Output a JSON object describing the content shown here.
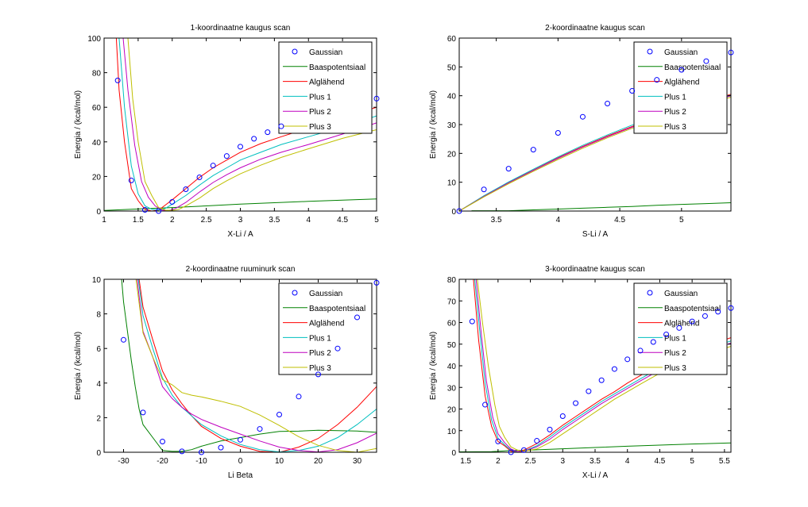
{
  "colors": {
    "Gaussian": "#0000ff",
    "Baaspotentsiaal": "#008000",
    "Alglähend": "#ff0000",
    "Plus 1": "#00bfbf",
    "Plus 2": "#bf00bf",
    "Plus 3": "#bfbf00"
  },
  "chart_data": [
    {
      "type": "line",
      "title": "1-koordinaatne kaugus scan",
      "xlabel": "X-Li / A",
      "ylabel": "Energia / (kcal/mol)",
      "xlim": [
        1,
        5
      ],
      "ylim": [
        0,
        100
      ],
      "xticks": [
        1,
        1.5,
        2,
        2.5,
        3,
        3.5,
        4,
        4.5,
        5
      ],
      "xtick_labels": [
        "1",
        "1.5",
        "2",
        "2.5",
        "3",
        "3.5",
        "4",
        "4.5",
        "5"
      ],
      "yticks": [
        0,
        20,
        40,
        60,
        80,
        100
      ],
      "ytick_labels": [
        "0",
        "20",
        "40",
        "60",
        "80",
        "100"
      ],
      "legend": "top-right",
      "series": [
        {
          "name": "Gaussian",
          "style": "marker",
          "x": [
            1.2,
            1.4,
            1.6,
            1.8,
            2.0,
            2.2,
            2.4,
            2.6,
            2.8,
            3.0,
            3.2,
            3.4,
            3.6,
            5.0
          ],
          "y": [
            75.5,
            17.7,
            0.7,
            0,
            5.3,
            12.6,
            19.5,
            26.3,
            31.8,
            37.2,
            41.8,
            45.6,
            49,
            65
          ]
        },
        {
          "name": "Baaspotentsiaal",
          "style": "line",
          "x": [
            1.0,
            1.5,
            2.0,
            2.5,
            3.0,
            3.5,
            4.0,
            4.5,
            5.0
          ],
          "y": [
            0.3,
            1.2,
            2.0,
            3.0,
            4.0,
            4.8,
            5.6,
            6.3,
            7.0
          ]
        },
        {
          "name": "Alglähend",
          "style": "line",
          "x": [
            1.18,
            1.22,
            1.3,
            1.4,
            1.5,
            1.6,
            1.7,
            1.8,
            1.9,
            2.0,
            2.2,
            2.4,
            2.6,
            2.8,
            3.0,
            3.3,
            3.6,
            4.0,
            4.5,
            5.0
          ],
          "y": [
            100,
            70,
            40,
            13,
            6,
            1,
            0,
            0.5,
            3.5,
            6.5,
            13,
            19.5,
            25,
            29.5,
            34,
            39,
            43,
            48,
            54,
            60
          ]
        },
        {
          "name": "Plus 1",
          "style": "line",
          "x": [
            1.22,
            1.3,
            1.4,
            1.5,
            1.6,
            1.7,
            1.8,
            1.9,
            2.0,
            2.2,
            2.4,
            2.6,
            2.8,
            3.0,
            3.3,
            3.6,
            4.0,
            4.5,
            5.0
          ],
          "y": [
            100,
            60,
            26,
            10,
            3,
            1,
            0.5,
            1.5,
            4,
            9,
            15,
            20.5,
            25,
            29.5,
            34,
            38.5,
            43,
            48.5,
            55
          ]
        },
        {
          "name": "Plus 2",
          "style": "line",
          "x": [
            1.28,
            1.35,
            1.45,
            1.55,
            1.65,
            1.75,
            1.85,
            1.95,
            2.05,
            2.2,
            2.4,
            2.6,
            2.8,
            3.0,
            3.3,
            3.6,
            4.0,
            4.5,
            5.0
          ],
          "y": [
            100,
            70,
            38,
            17,
            8,
            3,
            0.5,
            0.3,
            1.5,
            5,
            11,
            16.5,
            21,
            25,
            30,
            34,
            38.5,
            44.5,
            51
          ]
        },
        {
          "name": "Plus 3",
          "style": "line",
          "x": [
            1.35,
            1.42,
            1.5,
            1.6,
            1.7,
            1.8,
            1.9,
            2.0,
            2.1,
            2.2,
            2.4,
            2.6,
            2.8,
            3.0,
            3.3,
            3.6,
            4.0,
            4.5,
            5.0
          ],
          "y": [
            100,
            65,
            40,
            17,
            9,
            2,
            0.5,
            0.3,
            1,
            3,
            7.5,
            13,
            17.5,
            21.5,
            26.5,
            31,
            36,
            42,
            47
          ]
        }
      ]
    },
    {
      "type": "line",
      "title": "2-koordinaatne kaugus scan",
      "xlabel": "S-Li / A",
      "ylabel": "Energia / (kcal/mol)",
      "xlim": [
        3.2,
        5.4
      ],
      "ylim": [
        0,
        60
      ],
      "xticks": [
        3.5,
        4,
        4.5,
        5
      ],
      "xtick_labels": [
        "3.5",
        "4",
        "4.5",
        "5"
      ],
      "yticks": [
        0,
        10,
        20,
        30,
        40,
        50,
        60
      ],
      "ytick_labels": [
        "0",
        "10",
        "20",
        "30",
        "40",
        "50",
        "60"
      ],
      "legend": "top-right",
      "series": [
        {
          "name": "Gaussian",
          "style": "marker",
          "x": [
            3.2,
            3.4,
            3.6,
            3.8,
            4.0,
            4.2,
            4.4,
            4.6,
            4.8,
            5.0,
            5.2,
            5.4
          ],
          "y": [
            0,
            7.5,
            14.7,
            21.3,
            27.1,
            32.7,
            37.3,
            41.7,
            45.5,
            49,
            52,
            55
          ]
        },
        {
          "name": "Baaspotentsiaal",
          "style": "line",
          "x": [
            3.3,
            3.6,
            3.8,
            4.0,
            4.2,
            4.4,
            4.6,
            4.8,
            5.0,
            5.2,
            5.4
          ],
          "y": [
            0.1,
            0.1,
            0.4,
            0.7,
            1.0,
            1.3,
            1.6,
            2.0,
            2.3,
            2.6,
            2.9
          ]
        },
        {
          "name": "Alglähend",
          "style": "line",
          "x": [
            3.2,
            3.4,
            3.6,
            3.8,
            4.0,
            4.2,
            4.4,
            4.6,
            4.8,
            5.0,
            5.2,
            5.4
          ],
          "y": [
            0,
            5.2,
            9.9,
            14.2,
            18.5,
            22.4,
            26,
            29.3,
            32.5,
            35.3,
            38,
            40.5
          ]
        },
        {
          "name": "Plus 1",
          "style": "line",
          "x": [
            3.2,
            3.4,
            3.6,
            3.8,
            4.0,
            4.2,
            4.4,
            4.6,
            4.8,
            5.0,
            5.2,
            5.4
          ],
          "y": [
            0,
            5.3,
            10.1,
            14.5,
            18.8,
            22.8,
            26.4,
            29.8,
            32.8,
            35.5,
            38,
            40.2
          ]
        },
        {
          "name": "Plus 2",
          "style": "line",
          "x": [
            3.2,
            3.4,
            3.6,
            3.8,
            4.0,
            4.2,
            4.4,
            4.6,
            4.8,
            5.0,
            5.2,
            5.4
          ],
          "y": [
            0,
            5.1,
            9.8,
            14.1,
            18.3,
            22.2,
            25.8,
            29.1,
            32.2,
            35,
            37.6,
            40
          ]
        },
        {
          "name": "Plus 3",
          "style": "line",
          "x": [
            3.2,
            3.4,
            3.6,
            3.8,
            4.0,
            4.2,
            4.4,
            4.6,
            4.8,
            5.0,
            5.2,
            5.4
          ],
          "y": [
            0,
            4.9,
            9.5,
            13.8,
            17.9,
            21.8,
            25.4,
            28.7,
            31.8,
            34.6,
            37.2,
            39.5
          ]
        }
      ]
    },
    {
      "type": "line",
      "title": "2-koordinaatne ruuminurk scan",
      "xlabel": "Li Beta",
      "ylabel": "Energia / (kcal/mol)",
      "xlim": [
        -35,
        35
      ],
      "ylim": [
        0,
        10
      ],
      "xticks": [
        -30,
        -20,
        -10,
        0,
        10,
        20,
        30
      ],
      "xtick_labels": [
        "-30",
        "-20",
        "-10",
        "0",
        "10",
        "20",
        "30"
      ],
      "yticks": [
        0,
        2,
        4,
        6,
        8,
        10
      ],
      "ytick_labels": [
        "0",
        "2",
        "4",
        "6",
        "8",
        "10"
      ],
      "legend": "top-right",
      "series": [
        {
          "name": "Gaussian",
          "style": "marker",
          "x": [
            -30,
            -25,
            -20,
            -15,
            -10,
            -5,
            0,
            5,
            10,
            15,
            20,
            25,
            30,
            35
          ],
          "y": [
            6.5,
            2.3,
            0.62,
            0.05,
            0,
            0.27,
            0.72,
            1.35,
            2.18,
            3.22,
            4.5,
            6,
            7.8,
            9.8
          ]
        },
        {
          "name": "Baaspotentsiaal",
          "style": "line",
          "x": [
            -30.5,
            -30,
            -29,
            -28,
            -27,
            -26,
            -25,
            -22.5,
            -20,
            -17.5,
            -15,
            -12.5,
            -10,
            -5,
            0,
            5,
            10,
            15,
            20,
            25,
            30,
            35
          ],
          "y": [
            10,
            8.7,
            7,
            5.3,
            3.8,
            2.5,
            1.6,
            0.85,
            0.1,
            0.05,
            0.05,
            0.15,
            0.35,
            0.65,
            0.85,
            1.05,
            1.2,
            1.22,
            1.27,
            1.25,
            1.23,
            1.15
          ]
        },
        {
          "name": "Alglähend",
          "style": "line",
          "x": [
            -26,
            -25,
            -22.5,
            -20,
            -17.5,
            -15,
            -12.5,
            -10,
            -5,
            0,
            5,
            10,
            15,
            20,
            25,
            30,
            35
          ],
          "y": [
            10,
            8.4,
            6.5,
            4.7,
            3.6,
            2.8,
            2.1,
            1.5,
            0.8,
            0.35,
            0.05,
            0,
            0.3,
            0.8,
            1.6,
            2.6,
            3.8
          ]
        },
        {
          "name": "Plus 1",
          "style": "line",
          "x": [
            -26.2,
            -25,
            -22.5,
            -20,
            -17.5,
            -15,
            -12.5,
            -10,
            -5,
            0,
            5,
            10,
            15,
            20,
            25,
            30,
            35
          ],
          "y": [
            10,
            7.9,
            6,
            4.3,
            3.3,
            2.6,
            2.1,
            1.6,
            0.95,
            0.45,
            0.15,
            0.02,
            0.1,
            0.35,
            0.85,
            1.6,
            2.5
          ]
        },
        {
          "name": "Plus 2",
          "style": "line",
          "x": [
            -26.5,
            -25,
            -22.5,
            -20,
            -17.5,
            -15,
            -12.5,
            -10,
            -5,
            0,
            5,
            10,
            15,
            20,
            25,
            30,
            35
          ],
          "y": [
            10,
            7,
            5.5,
            3.8,
            3.1,
            2.6,
            2.2,
            1.9,
            1.45,
            1.05,
            0.65,
            0.3,
            0.1,
            0.02,
            0.15,
            0.55,
            1.1
          ]
        },
        {
          "name": "Plus 3",
          "style": "line",
          "x": [
            -26.8,
            -25,
            -22.5,
            -20,
            -17.5,
            -15,
            -12.5,
            -10,
            -5,
            0,
            5,
            10,
            15,
            20,
            25,
            30,
            35
          ],
          "y": [
            10,
            6.9,
            5.5,
            4.2,
            3.9,
            3.45,
            3.3,
            3.2,
            2.95,
            2.65,
            2.15,
            1.55,
            0.9,
            0.4,
            0.1,
            0,
            0.22
          ]
        }
      ]
    },
    {
      "type": "line",
      "title": "3-koordinaatne kaugus scan",
      "xlabel": "X-Li / A",
      "ylabel": "Energia / (kcal/mol)",
      "xlim": [
        1.4,
        5.6
      ],
      "ylim": [
        0,
        80
      ],
      "xticks": [
        1.5,
        2,
        2.5,
        3,
        3.5,
        4,
        4.5,
        5,
        5.5
      ],
      "xtick_labels": [
        "1.5",
        "2",
        "2.5",
        "3",
        "3.5",
        "4",
        "4.5",
        "5",
        "5.5"
      ],
      "yticks": [
        0,
        10,
        20,
        30,
        40,
        50,
        60,
        70,
        80
      ],
      "ytick_labels": [
        "0",
        "10",
        "20",
        "30",
        "40",
        "50",
        "60",
        "70",
        "80"
      ],
      "legend": "top-right",
      "series": [
        {
          "name": "Gaussian",
          "style": "marker",
          "x": [
            1.6,
            1.8,
            2.0,
            2.2,
            2.4,
            2.6,
            2.8,
            3.0,
            3.2,
            3.4,
            3.6,
            3.8,
            4.0,
            4.2,
            4.4,
            4.6,
            4.8,
            5.0,
            5.2,
            5.4,
            5.6
          ],
          "y": [
            60.5,
            22,
            5,
            0,
            1,
            5.3,
            10.5,
            16.7,
            22.7,
            28.2,
            33.3,
            38.5,
            43,
            47,
            51,
            54.5,
            57.5,
            60.5,
            63,
            65,
            66.7
          ]
        },
        {
          "name": "Baaspotentsiaal",
          "style": "line",
          "x": [
            1.4,
            1.9,
            2.2,
            2.5,
            3.0,
            3.5,
            4.0,
            4.5,
            5.0,
            5.6
          ],
          "y": [
            0.2,
            0.3,
            0.8,
            1.0,
            1.6,
            2.2,
            2.8,
            3.3,
            3.8,
            4.3
          ]
        },
        {
          "name": "Alglähend",
          "style": "line",
          "x": [
            1.62,
            1.7,
            1.8,
            1.9,
            2.0,
            2.1,
            2.2,
            2.3,
            2.4,
            2.6,
            2.8,
            3.0,
            3.2,
            3.4,
            3.6,
            3.8,
            4.0,
            4.2,
            4.5,
            5.0,
            5.6
          ],
          "y": [
            80,
            52,
            26,
            12,
            5,
            3,
            0.5,
            0.2,
            1,
            4,
            8,
            12.5,
            16.5,
            20.5,
            24.5,
            28,
            32,
            35.5,
            40.5,
            47,
            53
          ]
        },
        {
          "name": "Plus 1",
          "style": "line",
          "x": [
            1.64,
            1.72,
            1.8,
            1.9,
            2.0,
            2.1,
            2.2,
            2.3,
            2.4,
            2.6,
            2.8,
            3.0,
            3.2,
            3.4,
            3.6,
            3.8,
            4.0,
            4.2,
            4.5,
            5.0,
            5.6
          ],
          "y": [
            80,
            55,
            32,
            15,
            6.5,
            3.5,
            1,
            0.2,
            0.5,
            3,
            7,
            11.5,
            15.5,
            19.5,
            23.5,
            27,
            30.5,
            34,
            39,
            45.5,
            51.5
          ]
        },
        {
          "name": "Plus 2",
          "style": "line",
          "x": [
            1.66,
            1.74,
            1.82,
            1.92,
            2.0,
            2.1,
            2.2,
            2.3,
            2.4,
            2.6,
            2.8,
            3.0,
            3.2,
            3.4,
            3.6,
            3.8,
            4.0,
            4.2,
            4.5,
            5.0,
            5.6
          ],
          "y": [
            80,
            55,
            33,
            16,
            8.5,
            4.5,
            1.5,
            0.3,
            0.4,
            2.5,
            6,
            10.5,
            14.5,
            18.5,
            22.5,
            26,
            29.5,
            33,
            38,
            44.5,
            50.5
          ]
        },
        {
          "name": "Plus 3",
          "style": "line",
          "x": [
            1.68,
            1.76,
            1.85,
            1.95,
            2.02,
            2.1,
            2.2,
            2.3,
            2.4,
            2.6,
            2.8,
            3.0,
            3.2,
            3.4,
            3.6,
            3.8,
            4.0,
            4.2,
            4.5,
            5.0,
            5.6
          ],
          "y": [
            80,
            60,
            40,
            22,
            12,
            7,
            2.5,
            1,
            0.5,
            1.5,
            4.5,
            8.5,
            12.5,
            16.5,
            20.5,
            24.5,
            28,
            31.5,
            36.5,
            43,
            49
          ]
        }
      ]
    }
  ]
}
